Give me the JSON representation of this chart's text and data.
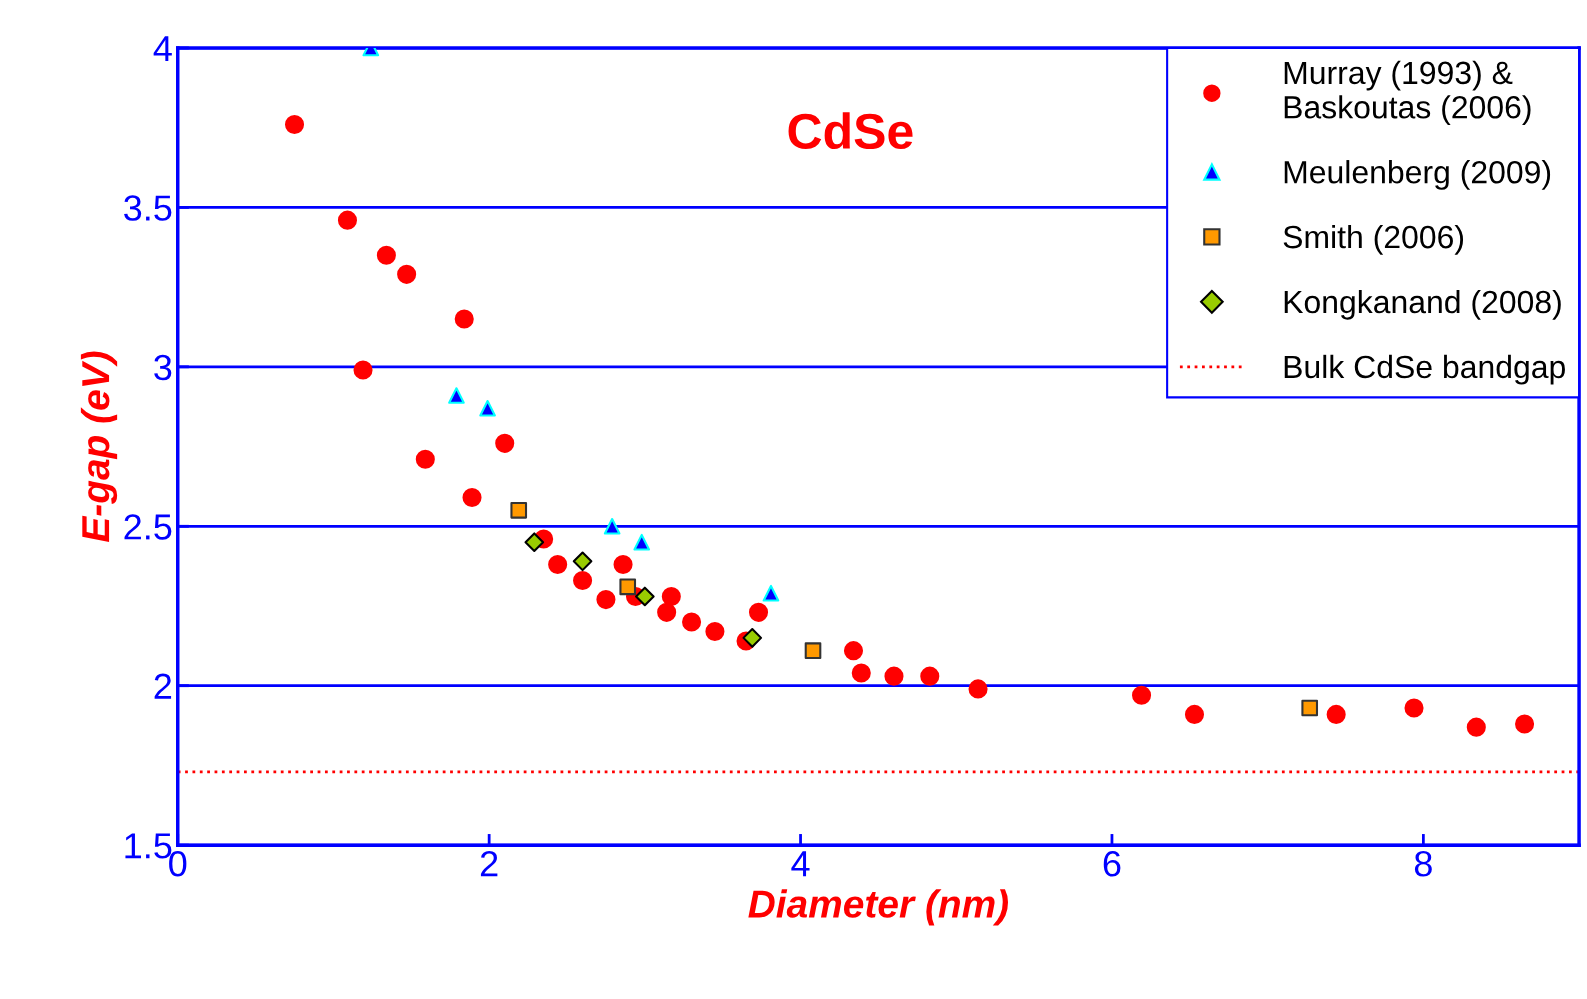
{
  "chart_data": {
    "type": "scatter",
    "xlabel": "Diameter (nm)",
    "ylabel": "E-gap (eV)",
    "annotations": [
      "CdSe"
    ],
    "xlim": [
      0,
      9
    ],
    "xticks": [
      0,
      2,
      4,
      6,
      8
    ],
    "ylim": [
      1.5,
      4
    ],
    "yticks": [
      1.5,
      2,
      2.5,
      3,
      3.5,
      4
    ],
    "grid": "y",
    "legend": "top right",
    "series": [
      {
        "name": "Murray (1993) &\nBaskoutas (2006)",
        "color": "#ff0000",
        "marker": "circle",
        "x": [
          0.75,
          1.09,
          1.34,
          1.47,
          1.84,
          1.19,
          2.1,
          1.59,
          1.89,
          2.35,
          2.44,
          2.6,
          2.86,
          2.75,
          2.94,
          3.17,
          3.14,
          3.3,
          3.45,
          3.65,
          3.73,
          4.34,
          4.39,
          4.6,
          4.83,
          5.14,
          6.19,
          6.53,
          7.44,
          7.94,
          8.34,
          8.65
        ],
        "values": [
          3.76,
          3.46,
          3.35,
          3.29,
          3.15,
          2.99,
          2.76,
          2.71,
          2.59,
          2.46,
          2.38,
          2.33,
          2.38,
          2.27,
          2.28,
          2.28,
          2.23,
          2.2,
          2.17,
          2.14,
          2.23,
          2.11,
          2.04,
          2.03,
          2.03,
          1.99,
          1.97,
          1.91,
          1.91,
          1.93,
          1.87,
          1.88
        ]
      },
      {
        "name": "Meulenberg (2009)",
        "color": "#0000ff",
        "marker": "triangle",
        "x": [
          1.24,
          1.79,
          1.99,
          2.79,
          2.98,
          3.81
        ],
        "values": [
          4.0,
          2.91,
          2.87,
          2.5,
          2.45,
          2.29
        ]
      },
      {
        "name": "Smith (2006)",
        "color": "#ff9900",
        "marker": "square",
        "x": [
          2.19,
          2.89,
          4.08,
          7.27
        ],
        "values": [
          2.55,
          2.31,
          2.11,
          1.93
        ]
      },
      {
        "name": "Kongkanand (2008)",
        "color": "#99cc00",
        "marker": "diamond",
        "x": [
          2.29,
          2.6,
          3.0,
          3.69
        ],
        "values": [
          2.45,
          2.39,
          2.28,
          2.15
        ]
      }
    ],
    "ref_lines": [
      {
        "axis": "y",
        "value": 1.73,
        "label": "Bulk CdSe bandgap",
        "color": "#ff0000",
        "line_style": "dotted"
      }
    ]
  }
}
